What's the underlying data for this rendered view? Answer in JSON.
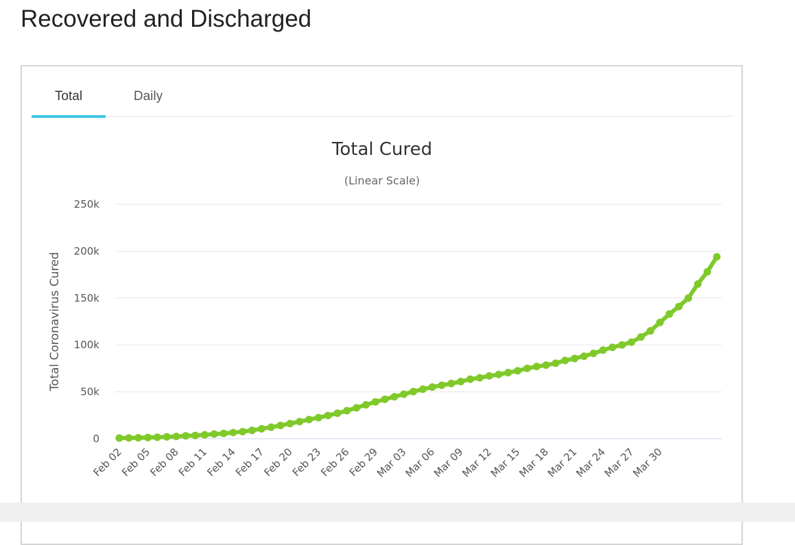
{
  "page": {
    "title": "Recovered and Discharged"
  },
  "tabs": [
    {
      "label": "Total",
      "active": true
    },
    {
      "label": "Daily",
      "active": false
    }
  ],
  "colors": {
    "line": "#80c92a",
    "tab_active": "#3ec3e6",
    "grid": "#e6e6e6"
  },
  "chart_data": {
    "type": "line",
    "title": "Total Cured",
    "subtitle": "(Linear Scale)",
    "xlabel": "",
    "ylabel": "Total Coronavirus Cured",
    "ylim": [
      0,
      250000
    ],
    "yticks": [
      0,
      50000,
      100000,
      150000,
      200000,
      250000
    ],
    "ytick_labels": [
      "0",
      "50k",
      "100k",
      "150k",
      "200k",
      "250k"
    ],
    "xtick_labels": [
      "Feb 02",
      "Feb 05",
      "Feb 08",
      "Feb 11",
      "Feb 14",
      "Feb 17",
      "Feb 20",
      "Feb 23",
      "Feb 26",
      "Feb 29",
      "Mar 03",
      "Mar 06",
      "Mar 09",
      "Mar 12",
      "Mar 15",
      "Mar 18",
      "Mar 21",
      "Mar 24",
      "Mar 27",
      "Mar 30"
    ],
    "grid": true,
    "series": [
      {
        "name": "Total Cured",
        "start_date": "Feb 02",
        "values": [
          700,
          800,
          1000,
          1300,
          1600,
          2000,
          2500,
          3100,
          3500,
          4200,
          5000,
          5700,
          6600,
          7600,
          9000,
          10600,
          12300,
          14200,
          16200,
          18300,
          20500,
          22500,
          24800,
          27200,
          29900,
          33000,
          36200,
          39300,
          42000,
          44800,
          47500,
          50300,
          52800,
          55100,
          57000,
          58900,
          61000,
          63500,
          65000,
          67000,
          68500,
          70500,
          72500,
          75000,
          77000,
          78500,
          80500,
          83500,
          85500,
          88000,
          91000,
          94500,
          97500,
          100000,
          103000,
          108500,
          115000,
          124000,
          133000,
          141000,
          150000,
          165000,
          178000,
          194000
        ]
      }
    ]
  }
}
